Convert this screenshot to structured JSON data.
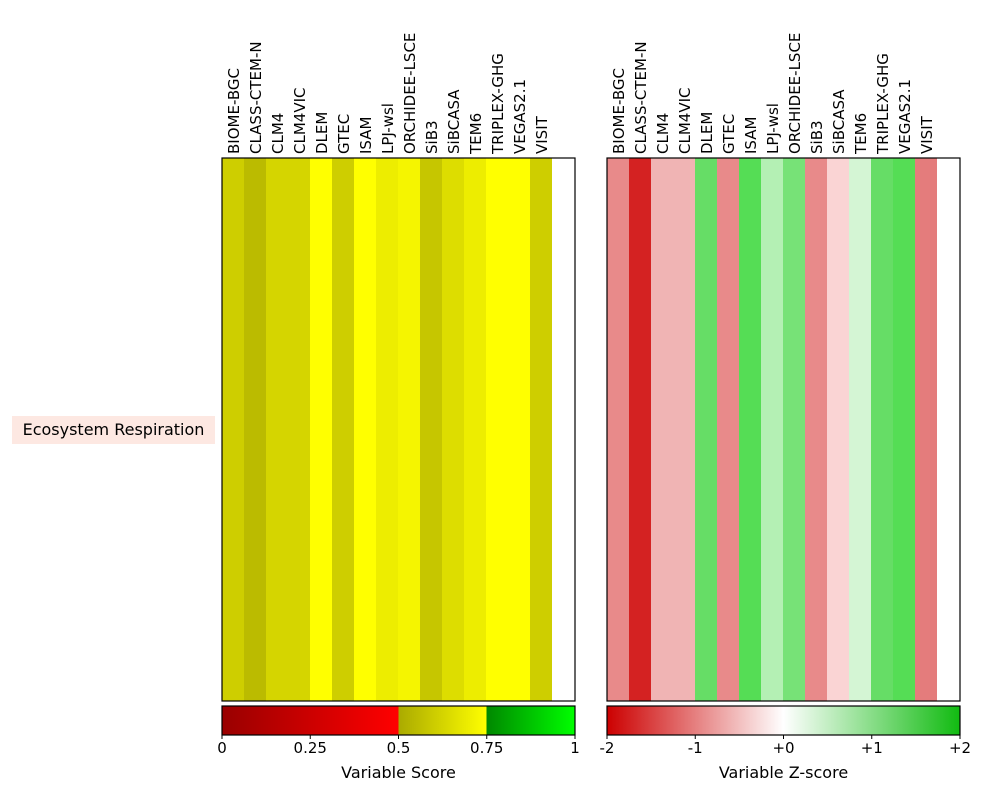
{
  "chart_data": [
    {
      "type": "heatmap",
      "models": [
        "BIOME-BGC",
        "CLASS-CTEM-N",
        "CLM4",
        "CLM4VIC",
        "DLEM",
        "GTEC",
        "ISAM",
        "LPJ-wsl",
        "ORCHIDEE-LSCE",
        "SiB3",
        "SiBCASA",
        "TEM6",
        "TRIPLEX-GHG",
        "VEGAS2.1",
        "VISIT"
      ],
      "rows": [
        "Ecosystem Respiration"
      ],
      "values": [
        [
          0.6,
          0.56,
          0.62,
          0.62,
          0.76,
          0.6,
          0.76,
          0.67,
          0.73,
          0.56,
          0.63,
          0.69,
          0.76,
          0.76,
          0.6
        ]
      ],
      "colors": [
        "#cece00",
        "#bbbb00",
        "#d5d500",
        "#d5d500",
        "#ffff00",
        "#cece00",
        "#ffff00",
        "#eded00",
        "#f5f500",
        "#c6c600",
        "#dddd00",
        "#eded00",
        "#ffff00",
        "#ffff00",
        "#cece00"
      ],
      "colorbar": {
        "label": "Variable Score",
        "ticks": [
          "0",
          "0.25",
          "0.5",
          "0.75",
          "1"
        ],
        "range": [
          0,
          1
        ]
      }
    },
    {
      "type": "heatmap",
      "models": [
        "BIOME-BGC",
        "CLASS-CTEM-N",
        "CLM4",
        "CLM4VIC",
        "DLEM",
        "GTEC",
        "ISAM",
        "LPJ-wsl",
        "ORCHIDEE-LSCE",
        "SiB3",
        "SiBCASA",
        "TEM6",
        "TRIPLEX-GHG",
        "VEGAS2.1",
        "VISIT"
      ],
      "rows": [
        "Ecosystem Respiration"
      ],
      "values": [
        [
          -1.2,
          -1.9,
          -0.7,
          -0.7,
          1.4,
          -1.1,
          1.8,
          0.6,
          1.2,
          -1.1,
          -0.3,
          0.3,
          1.4,
          1.8,
          -1.3
        ]
      ],
      "colors": [
        "#e88a8a",
        "#d42222",
        "#f0b4b4",
        "#f0b4b4",
        "#66dd66",
        "#e88a8a",
        "#55dd55",
        "#b4f0b4",
        "#77e277",
        "#e88a8a",
        "#fad4d4",
        "#d4f5d4",
        "#66dd66",
        "#55dd55",
        "#e47c7c"
      ],
      "colorbar": {
        "label": "Variable Z-score",
        "ticks": [
          "-2",
          "-1",
          "+0",
          "+1",
          "+2"
        ],
        "range": [
          -2,
          2
        ]
      }
    }
  ]
}
